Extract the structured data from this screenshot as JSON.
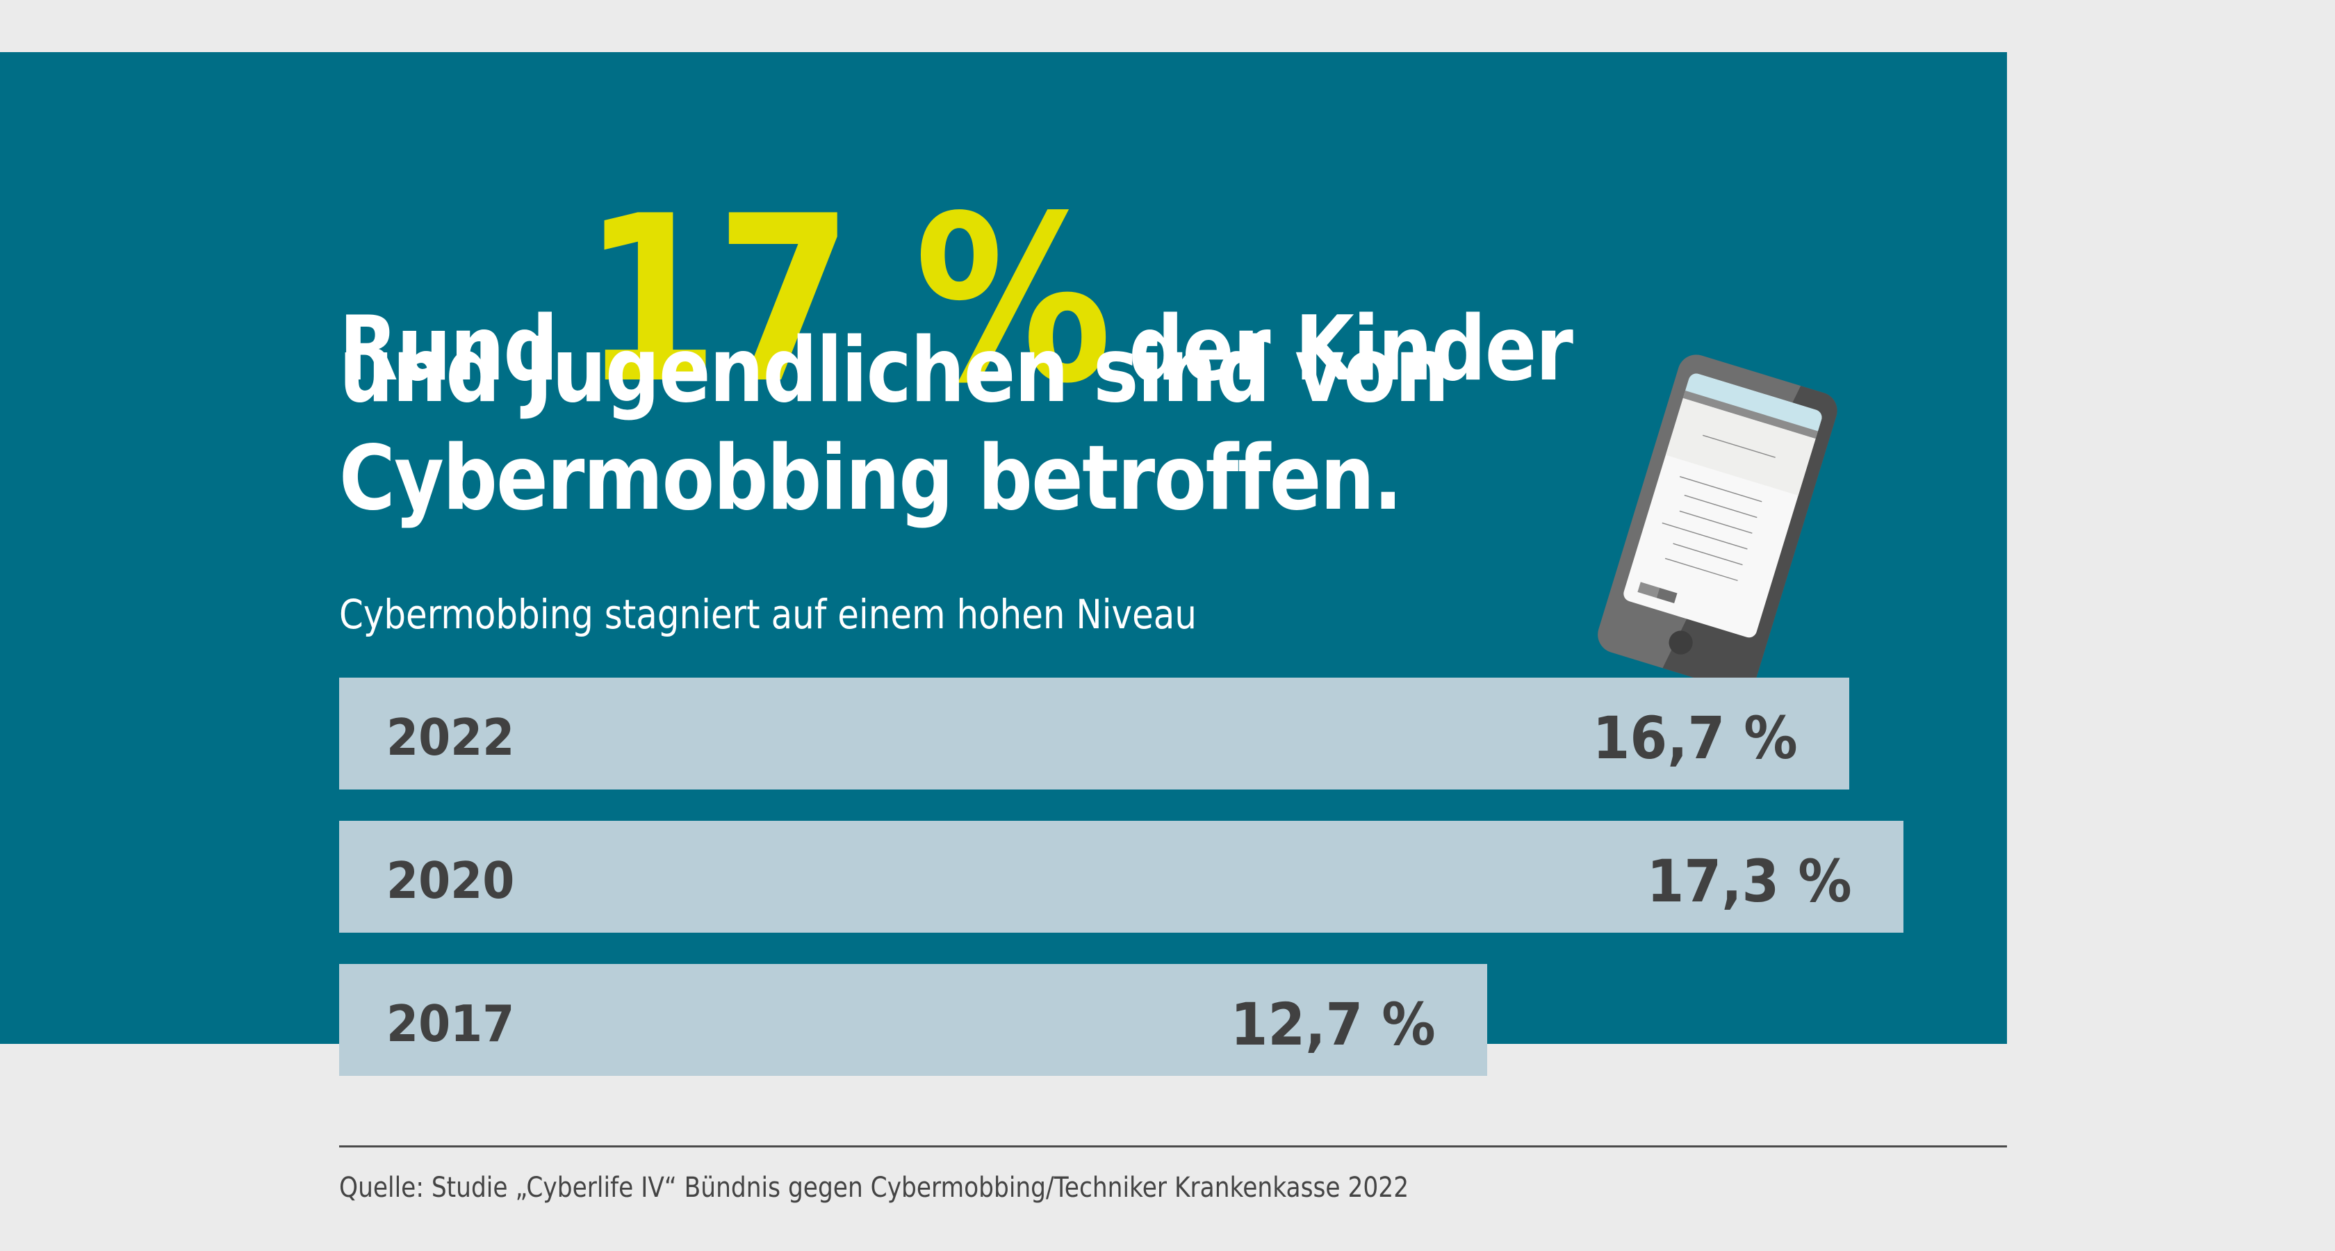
{
  "colors": {
    "background": "#ebebeb",
    "panel": "#006e86",
    "accent_yellow": "#e3e000",
    "bar": "#b9ced8",
    "text_dark": "#414141",
    "text_light": "#ffffff"
  },
  "headline": {
    "prefix": "Rund",
    "highlight": "17 %",
    "suffix": "der Kinder",
    "line2": "und Jugendlichen sind von",
    "line3": "Cybermobbing betroffen."
  },
  "subtitle": "Cybermobbing stagniert auf einem hohen Niveau",
  "chart_data": {
    "type": "bar",
    "orientation": "horizontal",
    "title": "Cybermobbing stagniert auf einem hohen Niveau",
    "categories": [
      "2022",
      "2020",
      "2017"
    ],
    "values": [
      16.7,
      17.3,
      12.7
    ],
    "value_labels": [
      "16,7 %",
      "17,3 %",
      "12,7 %"
    ],
    "unit": "%",
    "xlabel": "",
    "ylabel": "",
    "grid": false,
    "legend": "none"
  },
  "illustration": "smartphone-icon",
  "source": "Quelle: Studie „Cyberlife IV“ Bündnis gegen Cybermobbing/Techniker Krankenkasse 2022"
}
